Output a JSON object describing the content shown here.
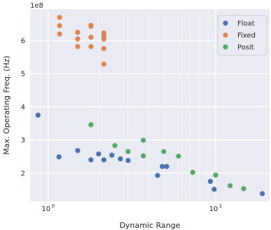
{
  "chart_data": {
    "type": "scatter",
    "xlabel": "Dynamic Range",
    "ylabel": "Max. Operating Freq. (Hz)",
    "y_multiplier_label": "1e8",
    "x_scale": "log",
    "xlim": [
      0.78,
      21
    ],
    "ylim": [
      115000000,
      695000000
    ],
    "x_ticks": [
      {
        "value": 1,
        "base": "10",
        "exp": "0"
      },
      {
        "value": 10,
        "base": "10",
        "exp": "1"
      }
    ],
    "y_ticks": [
      {
        "value": 200000000,
        "label": "2"
      },
      {
        "value": 300000000,
        "label": "3"
      },
      {
        "value": 400000000,
        "label": "4"
      },
      {
        "value": 500000000,
        "label": "5"
      },
      {
        "value": 600000000,
        "label": "6"
      }
    ],
    "grid": true,
    "legend_position": "top-right",
    "background": "#eaeaf2",
    "series": [
      {
        "name": "Float",
        "color": "#4c72b0",
        "points": [
          [
            0.87,
            375000000
          ],
          [
            1.16,
            249000000
          ],
          [
            1.5,
            268000000
          ],
          [
            1.8,
            240000000
          ],
          [
            2.0,
            258000000
          ],
          [
            2.15,
            240000000
          ],
          [
            2.4,
            254000000
          ],
          [
            2.7,
            243000000
          ],
          [
            3.0,
            238000000
          ],
          [
            4.5,
            193000000
          ],
          [
            4.8,
            220000000
          ],
          [
            5.1,
            220000000
          ],
          [
            9.3,
            175000000
          ],
          [
            9.8,
            151000000
          ],
          [
            19.0,
            138000000
          ]
        ]
      },
      {
        "name": "Fixed",
        "color": "#dd8452",
        "points": [
          [
            1.17,
            670000000
          ],
          [
            1.17,
            645000000
          ],
          [
            1.17,
            620000000
          ],
          [
            1.5,
            625000000
          ],
          [
            1.5,
            605000000
          ],
          [
            1.5,
            582000000
          ],
          [
            1.8,
            646000000
          ],
          [
            1.8,
            643000000
          ],
          [
            1.8,
            610000000
          ],
          [
            1.8,
            582000000
          ],
          [
            2.15,
            623000000
          ],
          [
            2.15,
            613000000
          ],
          [
            2.15,
            605000000
          ],
          [
            2.15,
            576000000
          ],
          [
            2.15,
            529000000
          ]
        ]
      },
      {
        "name": "Posit",
        "color": "#55a868",
        "points": [
          [
            1.8,
            346000000
          ],
          [
            2.5,
            283000000
          ],
          [
            3.0,
            265000000
          ],
          [
            3.7,
            299000000
          ],
          [
            3.7,
            252000000
          ],
          [
            4.9,
            265000000
          ],
          [
            6.0,
            251000000
          ],
          [
            7.3,
            202000000
          ],
          [
            10.0,
            194000000
          ],
          [
            12.2,
            162000000
          ],
          [
            14.7,
            153000000
          ]
        ]
      }
    ]
  }
}
